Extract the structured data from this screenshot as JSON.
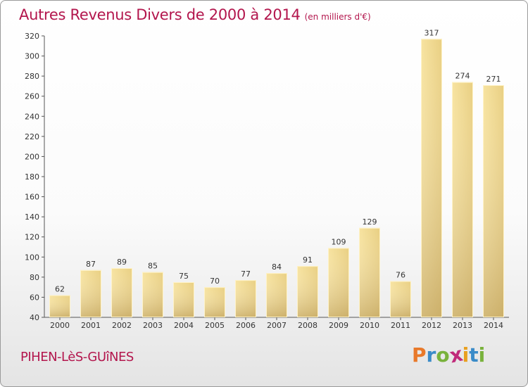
{
  "header": {
    "title": "Autres Revenus Divers de 2000 à 2014",
    "subtitle": "(en milliers d'€)"
  },
  "footer": {
    "commune": "PIHEN-LèS-GUîNES",
    "logo": [
      "P",
      "r",
      "o",
      "x",
      "i",
      "t",
      "i"
    ]
  },
  "colors": {
    "title": "#b3164d",
    "bar_light": "#f7e3a0",
    "bar_dark": "#c9ad69",
    "logo": [
      "#e8792a",
      "#3a8bc8",
      "#79b23c",
      "#c02a7a",
      "#e8a020",
      "#3a8bc8",
      "#79b23c"
    ]
  },
  "chart_data": {
    "type": "bar",
    "categories": [
      "2000",
      "2001",
      "2002",
      "2003",
      "2004",
      "2005",
      "2006",
      "2007",
      "2008",
      "2009",
      "2010",
      "2011",
      "2012",
      "2013",
      "2014"
    ],
    "values": [
      62,
      87,
      89,
      85,
      75,
      70,
      77,
      84,
      91,
      109,
      129,
      76,
      317,
      274,
      271
    ],
    "ylim": [
      40,
      320
    ],
    "yticks": [
      40,
      60,
      80,
      100,
      120,
      140,
      160,
      180,
      200,
      220,
      240,
      260,
      280,
      300,
      320
    ],
    "grid": false,
    "data_labels": true
  }
}
